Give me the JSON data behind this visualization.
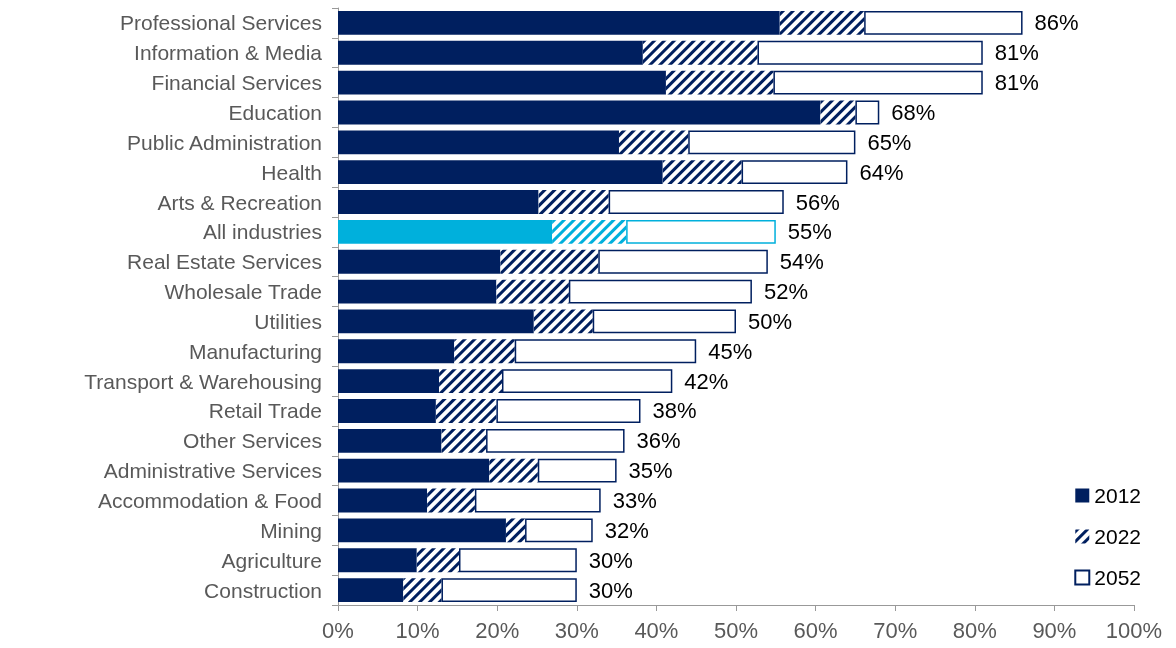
{
  "chart_data": {
    "type": "bar",
    "orientation": "horizontal",
    "stacked": true,
    "categories": [
      "Professional Services",
      "Information & Media",
      "Financial Services",
      "Education",
      "Public Administration",
      "Health",
      "Arts & Recreation",
      "All industries",
      "Real Estate Services",
      "Wholesale Trade",
      "Utilities",
      "Manufacturing",
      "Transport & Warehousing",
      "Retail Trade",
      "Other Services",
      "Administrative Services",
      "Accommodation & Food",
      "Mining",
      "Agriculture",
      "Construction"
    ],
    "series": [
      {
        "name": "2012",
        "color": "#001f5f",
        "colors": [
          "#001f5f",
          "#001f5f",
          "#001f5f",
          "#001f5f",
          "#001f5f",
          "#001f5f",
          "#001f5f",
          "#00b0dc",
          "#001f5f",
          "#001f5f",
          "#001f5f",
          "#001f5f",
          "#001f5f",
          "#001f5f",
          "#001f5f",
          "#001f5f",
          "#001f5f",
          "#001f5f",
          "#001f5f",
          "#001f5f"
        ],
        "values": [
          55.5,
          38.3,
          41.2,
          60.6,
          35.3,
          40.8,
          25.2,
          26.9,
          20.4,
          19.9,
          24.6,
          14.6,
          12.7,
          12.3,
          13.0,
          19.0,
          11.2,
          21.1,
          9.9,
          8.2
        ]
      },
      {
        "name": "2022",
        "color": "#001f5f",
        "colors": [
          "#001f5f",
          "#001f5f",
          "#001f5f",
          "#001f5f",
          "#001f5f",
          "#001f5f",
          "#001f5f",
          "#00b0dc",
          "#001f5f",
          "#001f5f",
          "#001f5f",
          "#001f5f",
          "#001f5f",
          "#001f5f",
          "#001f5f",
          "#001f5f",
          "#001f5f",
          "#001f5f",
          "#001f5f",
          "#001f5f"
        ],
        "values": [
          10.6,
          14.4,
          13.5,
          4.4,
          8.7,
          9.9,
          8.8,
          9.3,
          12.3,
          9.1,
          7.4,
          7.6,
          7.9,
          7.6,
          5.6,
          6.1,
          6.0,
          2.4,
          5.3,
          4.8
        ]
      },
      {
        "name": "2052",
        "color": "#ffffff",
        "values": [
          19.9,
          28.3,
          26.3,
          3.0,
          21.0,
          13.3,
          22.0,
          18.8,
          21.3,
          23.0,
          18.0,
          22.8,
          21.4,
          18.1,
          17.4,
          9.9,
          15.8,
          8.5,
          14.8,
          17.0
        ]
      }
    ],
    "totals": [
      "86%",
      "81%",
      "81%",
      "68%",
      "65%",
      "64%",
      "56%",
      "55%",
      "54%",
      "52%",
      "50%",
      "45%",
      "42%",
      "38%",
      "36%",
      "35%",
      "33%",
      "32%",
      "30%",
      "30%"
    ],
    "xlim": [
      0,
      100
    ],
    "xticks": [
      {
        "value": 0,
        "label": "0%"
      },
      {
        "value": 10,
        "label": "10%"
      },
      {
        "value": 20,
        "label": "20%"
      },
      {
        "value": 30,
        "label": "30%"
      },
      {
        "value": 40,
        "label": "40%"
      },
      {
        "value": 50,
        "label": "50%"
      },
      {
        "value": 60,
        "label": "60%"
      },
      {
        "value": 70,
        "label": "70%"
      },
      {
        "value": 80,
        "label": "80%"
      },
      {
        "value": 90,
        "label": "90%"
      },
      {
        "value": 100,
        "label": "100%"
      }
    ],
    "grid": false,
    "legend": "bottom right"
  }
}
